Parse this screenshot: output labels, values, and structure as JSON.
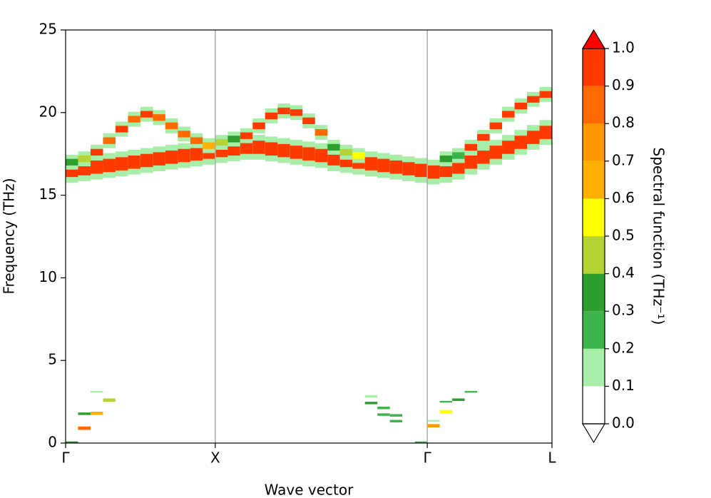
{
  "chart_data": {
    "type": "heatmap",
    "xlabel": "Wave vector",
    "ylabel": "Frequency (THz)",
    "xlim": [
      0,
      39
    ],
    "ylim": [
      0,
      25
    ],
    "xticks": [
      {
        "value": 0,
        "label": "Γ"
      },
      {
        "value": 12,
        "label": "X"
      },
      {
        "value": 29,
        "label": "Γ"
      },
      {
        "value": 39,
        "label": "L"
      }
    ],
    "yticks": [
      0,
      5,
      10,
      15,
      20,
      25
    ],
    "x_grid": true,
    "cells": [
      [
        0,
        15.75,
        17.25,
        0.15
      ],
      [
        0,
        16.1,
        16.9,
        0.95
      ],
      [
        0,
        16.55,
        17.45,
        0.15
      ],
      [
        0,
        16.8,
        17.2,
        0.35
      ],
      [
        1,
        15.85,
        17.35,
        0.15
      ],
      [
        1,
        16.2,
        17.0,
        0.95
      ],
      [
        1,
        16.75,
        17.65,
        0.15
      ],
      [
        1,
        17.0,
        17.4,
        0.45
      ],
      [
        2,
        15.95,
        17.45,
        0.15
      ],
      [
        2,
        16.3,
        17.1,
        0.95
      ],
      [
        2,
        17.15,
        18.05,
        0.15
      ],
      [
        2,
        17.4,
        17.8,
        0.95
      ],
      [
        3,
        16.05,
        17.55,
        0.15
      ],
      [
        3,
        16.4,
        17.2,
        0.95
      ],
      [
        3,
        17.85,
        18.75,
        0.15
      ],
      [
        3,
        18.1,
        18.5,
        0.9
      ],
      [
        4,
        16.15,
        17.65,
        0.15
      ],
      [
        4,
        16.5,
        17.3,
        0.95
      ],
      [
        4,
        18.55,
        19.45,
        0.15
      ],
      [
        4,
        18.8,
        19.2,
        0.95
      ],
      [
        5,
        16.25,
        17.75,
        0.15
      ],
      [
        5,
        16.6,
        17.4,
        0.95
      ],
      [
        5,
        19.15,
        20.05,
        0.15
      ],
      [
        5,
        19.4,
        19.8,
        0.9
      ],
      [
        6,
        16.35,
        17.85,
        0.15
      ],
      [
        6,
        16.7,
        17.5,
        0.95
      ],
      [
        6,
        19.45,
        20.35,
        0.15
      ],
      [
        6,
        19.7,
        20.1,
        0.95
      ],
      [
        7,
        16.45,
        17.95,
        0.15
      ],
      [
        7,
        16.8,
        17.6,
        0.95
      ],
      [
        7,
        19.25,
        20.15,
        0.15
      ],
      [
        7,
        19.5,
        19.9,
        0.9
      ],
      [
        8,
        16.55,
        18.05,
        0.15
      ],
      [
        8,
        16.9,
        17.7,
        0.95
      ],
      [
        8,
        18.75,
        19.65,
        0.15
      ],
      [
        8,
        19.0,
        19.4,
        0.9
      ],
      [
        9,
        16.65,
        18.15,
        0.15
      ],
      [
        9,
        17.0,
        17.8,
        0.95
      ],
      [
        9,
        18.25,
        19.15,
        0.15
      ],
      [
        9,
        18.5,
        18.9,
        0.85
      ],
      [
        10,
        16.75,
        18.25,
        0.15
      ],
      [
        10,
        17.1,
        17.9,
        0.95
      ],
      [
        10,
        17.85,
        18.75,
        0.15
      ],
      [
        10,
        18.1,
        18.5,
        0.9
      ],
      [
        11,
        16.85,
        18.35,
        0.15
      ],
      [
        11,
        17.2,
        18.0,
        0.95
      ],
      [
        11,
        17.55,
        18.45,
        0.15
      ],
      [
        11,
        17.8,
        18.2,
        0.65
      ],
      [
        12,
        16.95,
        18.45,
        0.15
      ],
      [
        12,
        17.3,
        18.1,
        0.95
      ],
      [
        12,
        17.75,
        18.65,
        0.15
      ],
      [
        12,
        18.0,
        18.4,
        0.45
      ],
      [
        13,
        17.05,
        18.55,
        0.15
      ],
      [
        13,
        17.4,
        18.2,
        0.95
      ],
      [
        13,
        17.95,
        18.85,
        0.15
      ],
      [
        13,
        18.2,
        18.6,
        0.35
      ],
      [
        14,
        17.15,
        18.65,
        0.15
      ],
      [
        14,
        17.5,
        18.3,
        0.95
      ],
      [
        14,
        18.15,
        19.05,
        0.15
      ],
      [
        14,
        18.4,
        18.8,
        0.95
      ],
      [
        15,
        17.15,
        18.65,
        0.15
      ],
      [
        15,
        17.5,
        18.3,
        0.95
      ],
      [
        15,
        18.75,
        19.65,
        0.15
      ],
      [
        15,
        19.0,
        19.4,
        0.95
      ],
      [
        16,
        17.05,
        18.55,
        0.15
      ],
      [
        16,
        17.4,
        18.2,
        0.95
      ],
      [
        16,
        19.35,
        20.25,
        0.15
      ],
      [
        16,
        19.6,
        20.0,
        0.95
      ],
      [
        17,
        16.95,
        18.45,
        0.15
      ],
      [
        17,
        17.3,
        18.1,
        0.95
      ],
      [
        17,
        19.65,
        20.55,
        0.15
      ],
      [
        17,
        19.9,
        20.3,
        0.95
      ],
      [
        18,
        16.85,
        18.35,
        0.15
      ],
      [
        18,
        17.2,
        18.0,
        0.95
      ],
      [
        18,
        19.55,
        20.45,
        0.15
      ],
      [
        18,
        19.8,
        20.2,
        0.95
      ],
      [
        19,
        16.75,
        18.25,
        0.15
      ],
      [
        19,
        17.1,
        17.9,
        0.95
      ],
      [
        19,
        19.05,
        19.95,
        0.15
      ],
      [
        19,
        19.3,
        19.7,
        0.95
      ],
      [
        20,
        16.65,
        18.15,
        0.15
      ],
      [
        20,
        17.0,
        17.8,
        0.95
      ],
      [
        20,
        18.35,
        19.25,
        0.15
      ],
      [
        20,
        18.6,
        19.0,
        0.9
      ],
      [
        21,
        16.45,
        17.95,
        0.15
      ],
      [
        21,
        16.8,
        17.6,
        0.95
      ],
      [
        21,
        17.45,
        18.35,
        0.15
      ],
      [
        21,
        17.7,
        18.1,
        0.35
      ],
      [
        22,
        16.35,
        17.85,
        0.15
      ],
      [
        22,
        16.7,
        17.5,
        0.95
      ],
      [
        22,
        17.15,
        18.05,
        0.15
      ],
      [
        22,
        17.4,
        17.8,
        0.45
      ],
      [
        23,
        16.25,
        17.75,
        0.15
      ],
      [
        23,
        16.6,
        17.4,
        0.95
      ],
      [
        23,
        16.95,
        17.85,
        0.15
      ],
      [
        23,
        17.2,
        17.6,
        0.55
      ],
      [
        24,
        16.15,
        17.65,
        0.15
      ],
      [
        24,
        16.5,
        17.3,
        0.95
      ],
      [
        25,
        16.05,
        17.55,
        0.15
      ],
      [
        25,
        16.4,
        17.2,
        0.95
      ],
      [
        26,
        15.95,
        17.45,
        0.15
      ],
      [
        26,
        16.3,
        17.1,
        0.95
      ],
      [
        27,
        15.85,
        17.35,
        0.15
      ],
      [
        27,
        16.2,
        17.0,
        0.95
      ],
      [
        28,
        15.75,
        17.25,
        0.15
      ],
      [
        28,
        16.1,
        16.9,
        0.95
      ],
      [
        29,
        15.65,
        17.15,
        0.15
      ],
      [
        29,
        16.0,
        16.8,
        0.95
      ],
      [
        30,
        15.75,
        17.25,
        0.15
      ],
      [
        30,
        16.1,
        16.9,
        0.95
      ],
      [
        30,
        16.75,
        17.65,
        0.15
      ],
      [
        30,
        17.0,
        17.4,
        0.35
      ],
      [
        31,
        15.95,
        17.45,
        0.15
      ],
      [
        31,
        16.3,
        17.1,
        0.95
      ],
      [
        31,
        16.95,
        17.85,
        0.15
      ],
      [
        31,
        17.2,
        17.6,
        0.3
      ],
      [
        32,
        16.25,
        17.75,
        0.15
      ],
      [
        32,
        16.6,
        17.4,
        0.95
      ],
      [
        32,
        17.45,
        18.35,
        0.15
      ],
      [
        32,
        17.7,
        18.1,
        0.95
      ],
      [
        33,
        16.55,
        18.05,
        0.15
      ],
      [
        33,
        16.9,
        17.7,
        0.95
      ],
      [
        33,
        18.05,
        18.95,
        0.15
      ],
      [
        33,
        18.3,
        18.7,
        0.95
      ],
      [
        34,
        16.85,
        18.35,
        0.15
      ],
      [
        34,
        17.2,
        18.0,
        0.95
      ],
      [
        34,
        18.75,
        19.65,
        0.15
      ],
      [
        34,
        19.0,
        19.4,
        0.95
      ],
      [
        35,
        17.15,
        18.65,
        0.15
      ],
      [
        35,
        17.5,
        18.3,
        0.95
      ],
      [
        35,
        19.45,
        20.35,
        0.15
      ],
      [
        35,
        19.7,
        20.1,
        0.95
      ],
      [
        36,
        17.45,
        18.95,
        0.15
      ],
      [
        36,
        17.8,
        18.6,
        0.95
      ],
      [
        36,
        19.95,
        20.85,
        0.15
      ],
      [
        36,
        20.2,
        20.6,
        0.95
      ],
      [
        37,
        17.75,
        19.25,
        0.15
      ],
      [
        37,
        18.1,
        18.9,
        0.95
      ],
      [
        37,
        20.35,
        21.25,
        0.15
      ],
      [
        37,
        20.6,
        21.0,
        0.95
      ],
      [
        38,
        18.05,
        19.55,
        0.15
      ],
      [
        38,
        18.4,
        19.2,
        0.95
      ],
      [
        38,
        20.65,
        21.55,
        0.15
      ],
      [
        38,
        20.9,
        21.3,
        0.95
      ],
      [
        0,
        0,
        0.1,
        0.35
      ],
      [
        1,
        0.8,
        1.0,
        0.85
      ],
      [
        1,
        1.7,
        1.85,
        0.35
      ],
      [
        2,
        1.7,
        1.9,
        0.7
      ],
      [
        2,
        3.05,
        3.15,
        0.15
      ],
      [
        3,
        2.5,
        2.7,
        0.45
      ],
      [
        24,
        2.75,
        2.9,
        0.15
      ],
      [
        24,
        2.35,
        2.5,
        0.35
      ],
      [
        25,
        2.05,
        2.2,
        0.3
      ],
      [
        25,
        1.65,
        1.8,
        0.3
      ],
      [
        26,
        1.6,
        1.75,
        0.3
      ],
      [
        26,
        1.25,
        1.4,
        0.3
      ],
      [
        28,
        0,
        0.1,
        0.3
      ],
      [
        29,
        0.95,
        1.15,
        0.75
      ],
      [
        29,
        1.3,
        1.4,
        0.15
      ],
      [
        30,
        1.8,
        2.0,
        0.55
      ],
      [
        30,
        2.45,
        2.55,
        0.3
      ],
      [
        31,
        2.55,
        2.7,
        0.35
      ],
      [
        32,
        3.05,
        3.15,
        0.3
      ]
    ],
    "colorbar": {
      "label": "Spectral function (THz⁻¹)",
      "levels": [
        {
          "value": 0,
          "label": "0.0"
        },
        0.1,
        0.2,
        0.3,
        0.4,
        0.5,
        0.6,
        0.7,
        0.8,
        0.9,
        {
          "value": 1,
          "label": "1.0"
        }
      ],
      "colors": [
        "#ffffff",
        "#a8eea8",
        "#3cb44b",
        "#2e9e2e",
        "#b4d334",
        "#ffff00",
        "#ffb000",
        "#ff9800",
        "#ff6a00",
        "#ff3a00"
      ],
      "under_color": "#ffffff",
      "over_color": "#ff0000"
    }
  }
}
